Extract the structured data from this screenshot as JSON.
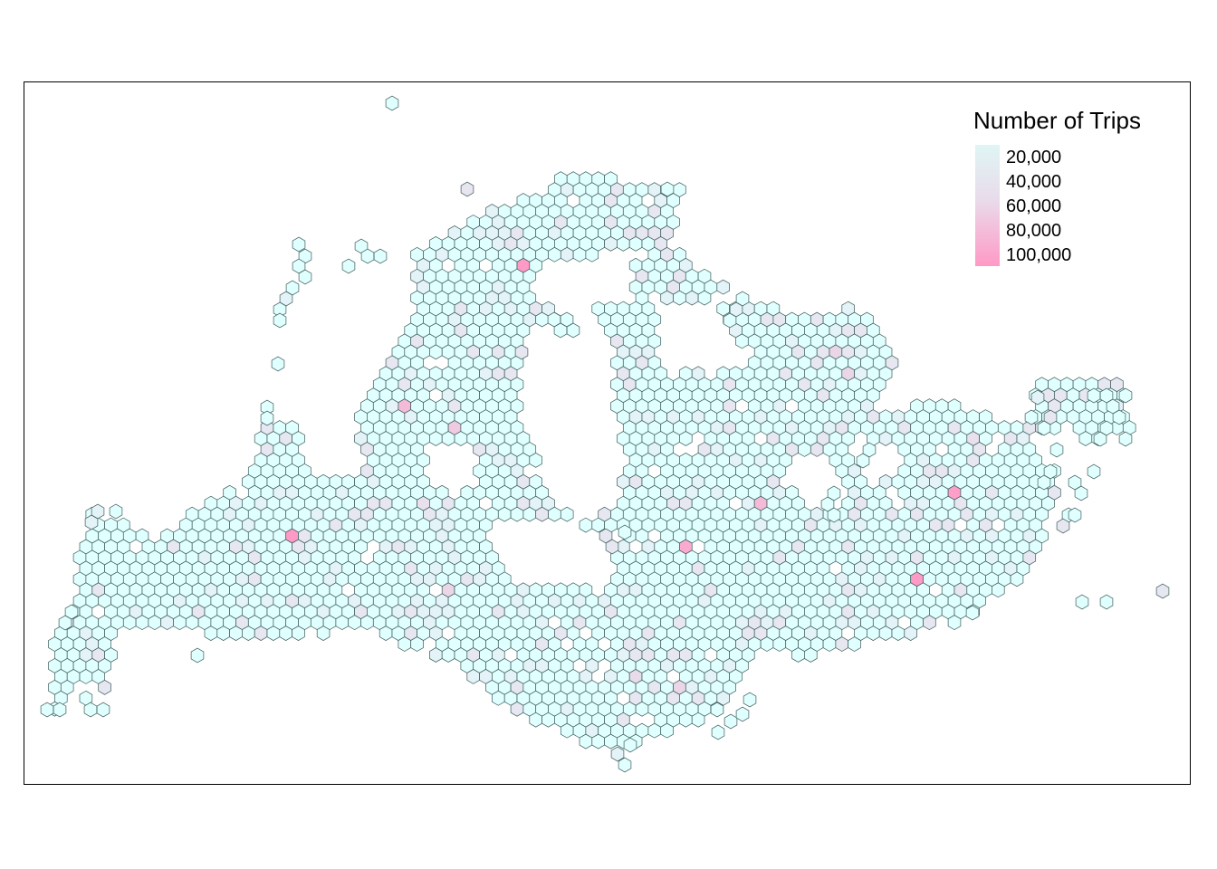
{
  "legend": {
    "title": "Number of Trips",
    "labels": [
      "20,000",
      "40,000",
      "60,000",
      "80,000",
      "100,000"
    ],
    "colors": {
      "low": "#dff5f5",
      "mid": "#e9dcea",
      "high": "#ff99c6"
    }
  },
  "map": {
    "fill_default": "#e0ffff",
    "outline": "#3d5a5a",
    "highlighted_cells": 18
  }
}
